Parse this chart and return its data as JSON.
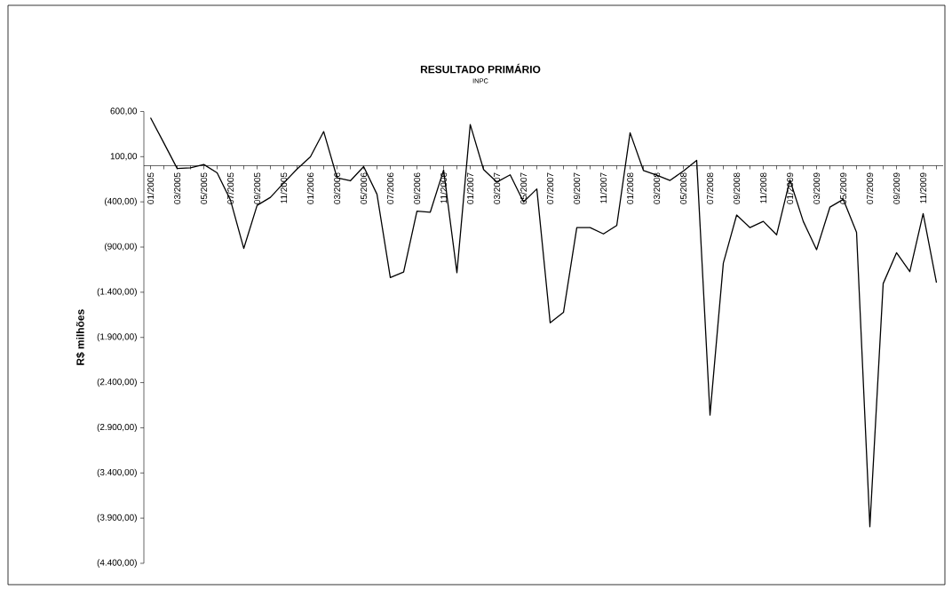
{
  "chart_data": {
    "type": "line",
    "title": "RESULTADO PRIMÁRIO",
    "subtitle": "INPC",
    "ylabel": "R$ milhões",
    "categories": [
      "01/2005",
      null,
      "03/2005",
      null,
      "05/2005",
      null,
      "07/2005",
      null,
      "09/2005",
      null,
      "11/2005",
      null,
      "01/2006",
      null,
      "03/2006",
      null,
      "05/2006",
      null,
      "07/2006",
      null,
      "09/2006",
      null,
      "11/2006",
      null,
      "01/2007",
      null,
      "03/2007",
      null,
      "05/2007",
      null,
      "07/2007",
      null,
      "09/2007",
      null,
      "11/2007",
      null,
      "01/2008",
      null,
      "03/2008",
      null,
      "05/2008",
      null,
      "07/2008",
      null,
      "09/2008",
      null,
      "11/2008",
      null,
      "01/2009",
      null,
      "03/2009",
      null,
      "05/2009",
      null,
      "07/2009",
      null,
      "09/2009",
      null,
      "11/2009",
      null
    ],
    "series": [
      {
        "color": "#000000",
        "values": [
          531,
          252,
          -31,
          -24,
          14,
          -78,
          -380,
          -915,
          -439,
          -350,
          -190,
          -37,
          99,
          378,
          -133,
          -167,
          -10,
          -316,
          -1238,
          -1177,
          -503,
          -514,
          -48,
          -1184,
          456,
          -42,
          -181,
          -101,
          -400,
          -257,
          -1738,
          -1623,
          -685,
          -685,
          -755,
          -661,
          365,
          -52,
          -104,
          -163,
          -59,
          59,
          -2759,
          -1078,
          -546,
          -685,
          -616,
          -765,
          -157,
          -616,
          -929,
          -459,
          -372,
          -737,
          -3995,
          -1304,
          -963,
          -1172,
          -529,
          -1294
        ]
      }
    ],
    "ylim": [
      -4400,
      600
    ],
    "yticks": [
      {
        "value": -4400,
        "label": "(4.400,00)"
      },
      {
        "value": -3900,
        "label": "(3.900,00)"
      },
      {
        "value": -3400,
        "label": "(3.400,00)"
      },
      {
        "value": -2900,
        "label": "(2.900,00)"
      },
      {
        "value": -2400,
        "label": "(2.400,00)"
      },
      {
        "value": -1900,
        "label": "(1.900,00)"
      },
      {
        "value": -1400,
        "label": "(1.400,00)"
      },
      {
        "value": -900,
        "label": "(900,00)"
      },
      {
        "value": -400,
        "label": "(400,00)"
      },
      {
        "value": 100,
        "label": "100,00"
      },
      {
        "value": 600,
        "label": "600,00"
      }
    ],
    "marker": "none",
    "line_style": "solid"
  }
}
